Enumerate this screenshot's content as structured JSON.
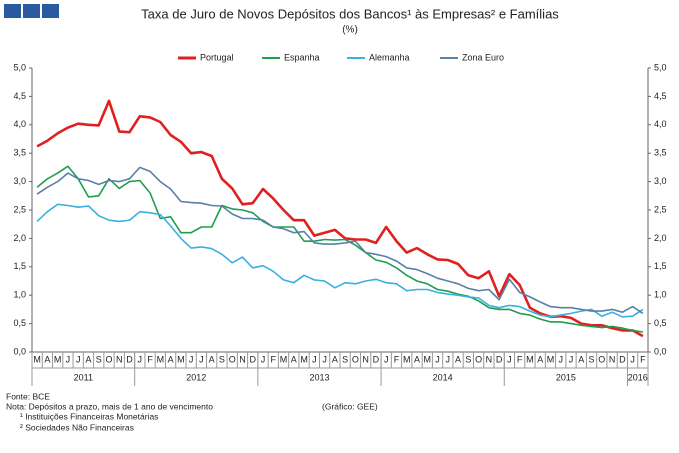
{
  "chart_data": {
    "type": "line",
    "title": "Taxa de Juro de Novos Depósitos dos Bancos¹ às Empresas² e Famílias",
    "subtitle": "(%)",
    "categories": [
      "M",
      "A",
      "M",
      "J",
      "J",
      "A",
      "S",
      "O",
      "N",
      "D",
      "J",
      "F",
      "M",
      "A",
      "M",
      "J",
      "J",
      "A",
      "S",
      "O",
      "N",
      "D",
      "J",
      "F",
      "M",
      "A",
      "M",
      "J",
      "J",
      "A",
      "S",
      "O",
      "N",
      "D",
      "J",
      "F",
      "M",
      "A",
      "M",
      "J",
      "J",
      "A",
      "S",
      "O",
      "N",
      "D",
      "J",
      "F",
      "M",
      "A",
      "M",
      "J",
      "J",
      "A",
      "S",
      "O",
      "N",
      "D",
      "J",
      "F"
    ],
    "years": [
      "2011",
      "2012",
      "2013",
      "2014",
      "2015",
      "2016"
    ],
    "ylim": [
      0,
      5
    ],
    "yticks": [
      {
        "value": 0,
        "label": "0,0"
      },
      {
        "value": 0.5,
        "label": "0,5"
      },
      {
        "value": 1,
        "label": "1,0"
      },
      {
        "value": 1.5,
        "label": "1,5"
      },
      {
        "value": 2,
        "label": "2,0"
      },
      {
        "value": 2.5,
        "label": "2,5"
      },
      {
        "value": 3,
        "label": "3,0"
      },
      {
        "value": 3.5,
        "label": "3,5"
      },
      {
        "value": 4,
        "label": "4,0"
      },
      {
        "value": 4.5,
        "label": "4,5"
      },
      {
        "value": 5,
        "label": "5,0"
      }
    ],
    "y2lim": [
      0,
      5
    ],
    "y2ticks": [
      {
        "value": 0,
        "label": "0,0"
      },
      {
        "value": 0.5,
        "label": "0,5"
      },
      {
        "value": 1,
        "label": "1,0"
      },
      {
        "value": 1.5,
        "label": "1,5"
      },
      {
        "value": 2,
        "label": "2,0"
      },
      {
        "value": 2.5,
        "label": "2,5"
      },
      {
        "value": 3,
        "label": "3,0"
      },
      {
        "value": 3.5,
        "label": "3,5"
      },
      {
        "value": 4,
        "label": "4,0"
      },
      {
        "value": 4.5,
        "label": "4,5"
      },
      {
        "value": 5,
        "label": "5,0"
      }
    ],
    "legend": "top",
    "series": [
      {
        "name": "Portugal",
        "color": "#e02020",
        "values": [
          3.62,
          3.72,
          3.85,
          3.95,
          4.02,
          4.0,
          3.99,
          4.42,
          3.88,
          3.87,
          4.15,
          4.13,
          4.05,
          3.82,
          3.7,
          3.5,
          3.52,
          3.45,
          3.05,
          2.88,
          2.6,
          2.62,
          2.87,
          2.7,
          2.5,
          2.32,
          2.32,
          2.05,
          2.1,
          2.15,
          2.0,
          1.98,
          1.98,
          1.92,
          2.2,
          1.95,
          1.75,
          1.83,
          1.72,
          1.63,
          1.62,
          1.55,
          1.35,
          1.3,
          1.42,
          0.98,
          1.37,
          1.18,
          0.78,
          0.68,
          0.62,
          0.63,
          0.6,
          0.5,
          0.47,
          0.47,
          0.42,
          0.38,
          0.38,
          0.28
        ]
      },
      {
        "name": "Espanha",
        "color": "#1f9e50",
        "values": [
          2.9,
          3.05,
          3.15,
          3.27,
          3.05,
          2.73,
          2.75,
          3.05,
          2.88,
          3.0,
          3.02,
          2.8,
          2.35,
          2.38,
          2.1,
          2.1,
          2.2,
          2.2,
          2.58,
          2.52,
          2.5,
          2.45,
          2.3,
          2.2,
          2.2,
          2.2,
          1.95,
          1.95,
          1.98,
          1.97,
          1.98,
          1.88,
          1.75,
          1.62,
          1.58,
          1.48,
          1.35,
          1.25,
          1.2,
          1.1,
          1.07,
          1.02,
          0.98,
          0.9,
          0.78,
          0.75,
          0.75,
          0.68,
          0.65,
          0.58,
          0.53,
          0.53,
          0.5,
          0.47,
          0.45,
          0.43,
          0.45,
          0.42,
          0.38,
          0.35
        ]
      },
      {
        "name": "Alemanha",
        "color": "#3ab0e0",
        "values": [
          2.3,
          2.47,
          2.6,
          2.58,
          2.55,
          2.57,
          2.4,
          2.32,
          2.3,
          2.32,
          2.47,
          2.45,
          2.42,
          2.22,
          2.0,
          1.83,
          1.85,
          1.82,
          1.72,
          1.57,
          1.67,
          1.48,
          1.52,
          1.42,
          1.27,
          1.22,
          1.35,
          1.27,
          1.25,
          1.13,
          1.22,
          1.2,
          1.25,
          1.28,
          1.22,
          1.2,
          1.08,
          1.1,
          1.1,
          1.05,
          1.02,
          1.0,
          0.97,
          0.95,
          0.82,
          0.78,
          0.82,
          0.8,
          0.72,
          0.65,
          0.62,
          0.65,
          0.68,
          0.72,
          0.75,
          0.63,
          0.7,
          0.62,
          0.63,
          0.75
        ]
      },
      {
        "name": "Zona Euro",
        "color": "#5a7fa8",
        "values": [
          2.78,
          2.9,
          3.0,
          3.15,
          3.05,
          3.02,
          2.95,
          3.02,
          3.0,
          3.05,
          3.25,
          3.18,
          3.0,
          2.87,
          2.65,
          2.63,
          2.62,
          2.58,
          2.57,
          2.43,
          2.35,
          2.35,
          2.32,
          2.2,
          2.17,
          2.1,
          2.12,
          1.92,
          1.9,
          1.9,
          1.92,
          1.95,
          1.75,
          1.72,
          1.68,
          1.6,
          1.48,
          1.45,
          1.38,
          1.3,
          1.25,
          1.2,
          1.12,
          1.08,
          1.1,
          0.92,
          1.28,
          1.05,
          0.97,
          0.88,
          0.8,
          0.78,
          0.78,
          0.75,
          0.72,
          0.72,
          0.75,
          0.7,
          0.8,
          0.68
        ]
      }
    ],
    "notes": [
      "Fonte: BCE",
      "Nota: Depósitos a prazo, mais de 1 ano de vencimento",
      "¹ Instituições Financeiras Monetárias",
      "² Sociedades Não Financeiras"
    ],
    "credit": "(Gráfico: GEE)"
  }
}
